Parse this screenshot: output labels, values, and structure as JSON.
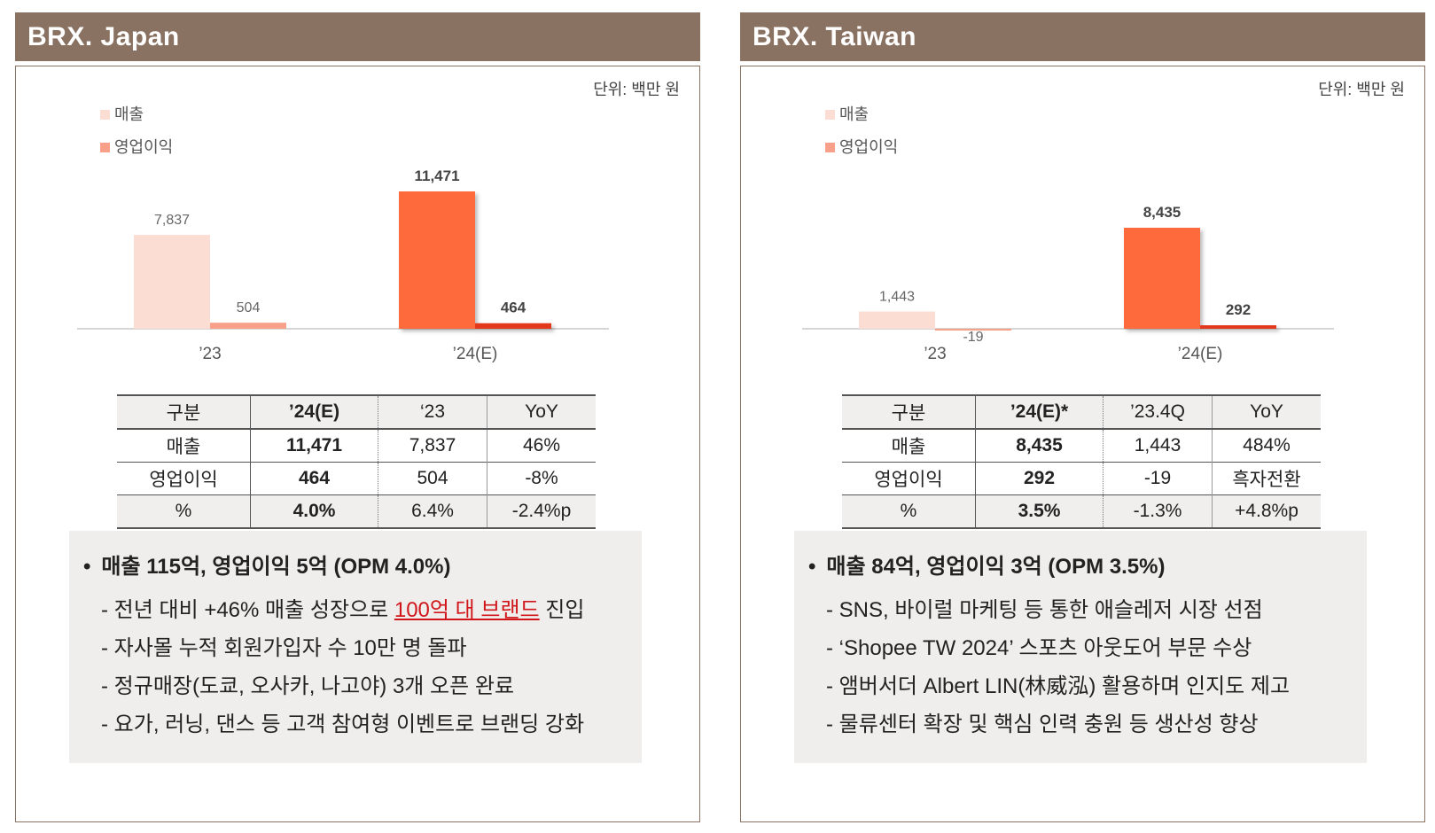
{
  "colors": {
    "header_bg": "#8a7263",
    "sales_light": "#fcddd4",
    "profit_light": "#f8a08a",
    "sales_dark": "#ff6a3d",
    "profit_dark": "#e2391c",
    "highlight_text": "#d0161b"
  },
  "panels": [
    {
      "title": "BRX. Japan",
      "unit": "단위: 백만 원",
      "legend": [
        "매출",
        "영업이익"
      ],
      "table": {
        "headers": [
          "구분",
          "’24(E)",
          "‘23",
          "YoY"
        ],
        "rows": [
          [
            "매출",
            "11,471",
            "7,837",
            "46%"
          ],
          [
            "영업이익",
            "464",
            "504",
            "-8%"
          ],
          [
            "%",
            "4.0%",
            "6.4%",
            "-2.4%p"
          ]
        ]
      },
      "notes": {
        "headline": "매출 115억, 영업이익 5억 (OPM 4.0%)",
        "items": [
          {
            "pre": "- 전년 대비 +46% 매출 성장으로 ",
            "hl": "100억 대 브랜드",
            "post": " 진입"
          },
          {
            "pre": "- 자사몰 누적 회원가입자 수 10만 명 돌파",
            "hl": "",
            "post": ""
          },
          {
            "pre": "- 정규매장(도쿄, 오사카, 나고야) 3개 오픈 완료",
            "hl": "",
            "post": ""
          },
          {
            "pre": "- 요가, 러닝, 댄스 등 고객 참여형 이벤트로 브랜딩 강화",
            "hl": "",
            "post": ""
          }
        ]
      }
    },
    {
      "title": "BRX. Taiwan",
      "unit": "단위: 백만 원",
      "legend": [
        "매출",
        "영업이익"
      ],
      "table": {
        "headers": [
          "구분",
          "’24(E)*",
          "’23.4Q",
          "YoY"
        ],
        "rows": [
          [
            "매출",
            "8,435",
            "1,443",
            "484%"
          ],
          [
            "영업이익",
            "292",
            "-19",
            "흑자전환"
          ],
          [
            "%",
            "3.5%",
            "-1.3%",
            "+4.8%p"
          ]
        ]
      },
      "notes": {
        "headline": "매출 84억, 영업이익 3억 (OPM 3.5%)",
        "items": [
          {
            "pre": "- SNS, 바이럴 마케팅 등 통한 애슬레저 시장 선점",
            "hl": "",
            "post": ""
          },
          {
            "pre": "- ‘Shopee TW 2024’ 스포츠 아웃도어 부문 수상",
            "hl": "",
            "post": ""
          },
          {
            "pre": "- 앰버서더 Albert LIN(林威泓) 활용하며 인지도 제고",
            "hl": "",
            "post": ""
          },
          {
            "pre": "- 물류센터 확장 및 핵심 인력 충원 등 생산성 향상",
            "hl": "",
            "post": ""
          }
        ]
      }
    }
  ],
  "chart_data": [
    {
      "type": "bar",
      "categories": [
        "’23",
        "’24(E)"
      ],
      "series": [
        {
          "name": "매출",
          "values": [
            7837,
            11471
          ]
        },
        {
          "name": "영업이익",
          "values": [
            504,
            464
          ]
        }
      ],
      "data_labels": [
        [
          "7,837",
          "11,471"
        ],
        [
          "504",
          "464"
        ]
      ],
      "title": "",
      "xlabel": "",
      "ylabel": "",
      "ylim": [
        -1000,
        13500
      ],
      "legend_position": "top-left",
      "grid": false
    },
    {
      "type": "bar",
      "categories": [
        "’23",
        "’24(E)"
      ],
      "series": [
        {
          "name": "매출",
          "values": [
            1443,
            8435
          ]
        },
        {
          "name": "영업이익",
          "values": [
            -19,
            292
          ]
        }
      ],
      "data_labels": [
        [
          "1,443",
          "8,435"
        ],
        [
          "-19",
          "292"
        ]
      ],
      "title": "",
      "xlabel": "",
      "ylabel": "",
      "ylim": [
        -1000,
        13500
      ],
      "legend_position": "top-left",
      "grid": false
    }
  ]
}
